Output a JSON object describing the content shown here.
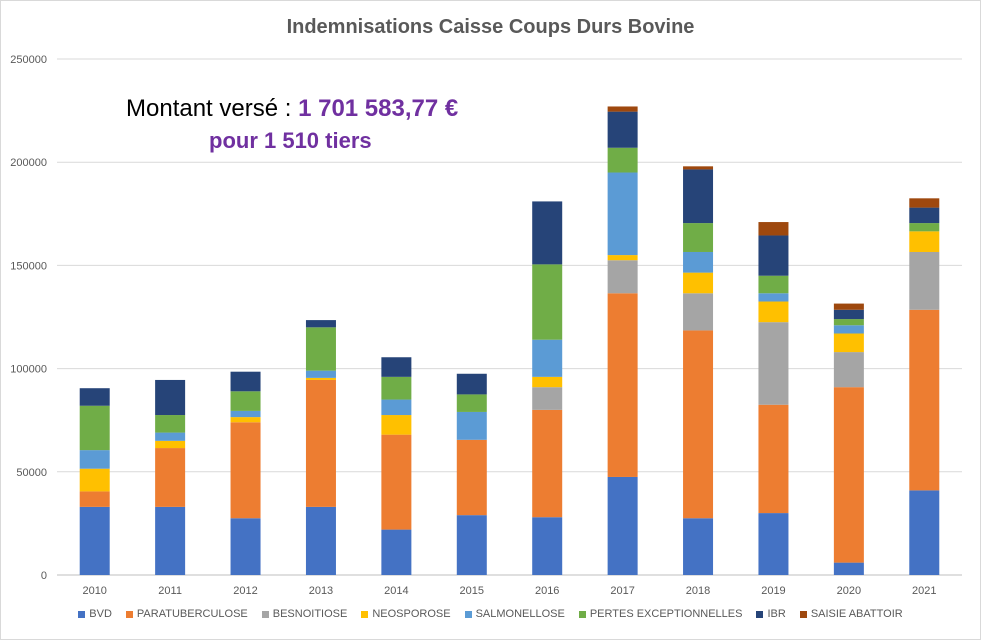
{
  "chart_data": {
    "type": "bar",
    "stacked": true,
    "title": "Indemnisations Caisse Coups Durs Bovine",
    "annotation_line1_prefix": "Montant versé : ",
    "annotation_line1_amount": "1 701 583,77 €",
    "annotation_line2": "pour 1 510 tiers",
    "categories": [
      "2010",
      "2011",
      "2012",
      "2013",
      "2014",
      "2015",
      "2016",
      "2017",
      "2018",
      "2019",
      "2020",
      "2021"
    ],
    "ylim": [
      0,
      250000
    ],
    "yticks": [
      "0",
      "50000",
      "100000",
      "150000",
      "200000",
      "250000"
    ],
    "grid": true,
    "legend_position": "bottom",
    "series": [
      {
        "name": "BVD",
        "color": "#4472c4",
        "values": [
          33000,
          33000,
          27500,
          33000,
          22000,
          29000,
          28000,
          47500,
          27500,
          30000,
          6000,
          41000
        ]
      },
      {
        "name": "PARATUBERCULOSE",
        "color": "#ed7d31",
        "values": [
          7500,
          28500,
          46500,
          61500,
          46000,
          36500,
          52000,
          89000,
          91000,
          52500,
          85000,
          87500
        ]
      },
      {
        "name": "BESNOITIOSE",
        "color": "#a5a5a5",
        "values": [
          0,
          0,
          0,
          0,
          0,
          0,
          11000,
          16000,
          18000,
          40000,
          17000,
          28000
        ]
      },
      {
        "name": "NEOSPOROSE",
        "color": "#ffc000",
        "values": [
          11000,
          3500,
          2500,
          1000,
          9500,
          0,
          5000,
          2500,
          10000,
          10000,
          9000,
          10000
        ]
      },
      {
        "name": "SALMONELLOSE",
        "color": "#5b9bd5",
        "values": [
          9000,
          4000,
          3000,
          3500,
          7500,
          13500,
          18000,
          40000,
          10000,
          4000,
          4000,
          0
        ]
      },
      {
        "name": "PERTES EXCEPTIONNELLES",
        "color": "#70ad47",
        "values": [
          21500,
          8500,
          9500,
          21000,
          11000,
          8500,
          36500,
          12000,
          14000,
          8500,
          3000,
          4000
        ]
      },
      {
        "name": "IBR",
        "color": "#264478",
        "values": [
          8500,
          17000,
          9500,
          3500,
          9500,
          10000,
          30500,
          17500,
          26000,
          19500,
          4500,
          7500
        ]
      },
      {
        "name": "SAISIE ABATTOIR",
        "color": "#9e480e",
        "values": [
          0,
          0,
          0,
          0,
          0,
          0,
          0,
          2500,
          1500,
          6500,
          3000,
          4500
        ]
      }
    ]
  }
}
